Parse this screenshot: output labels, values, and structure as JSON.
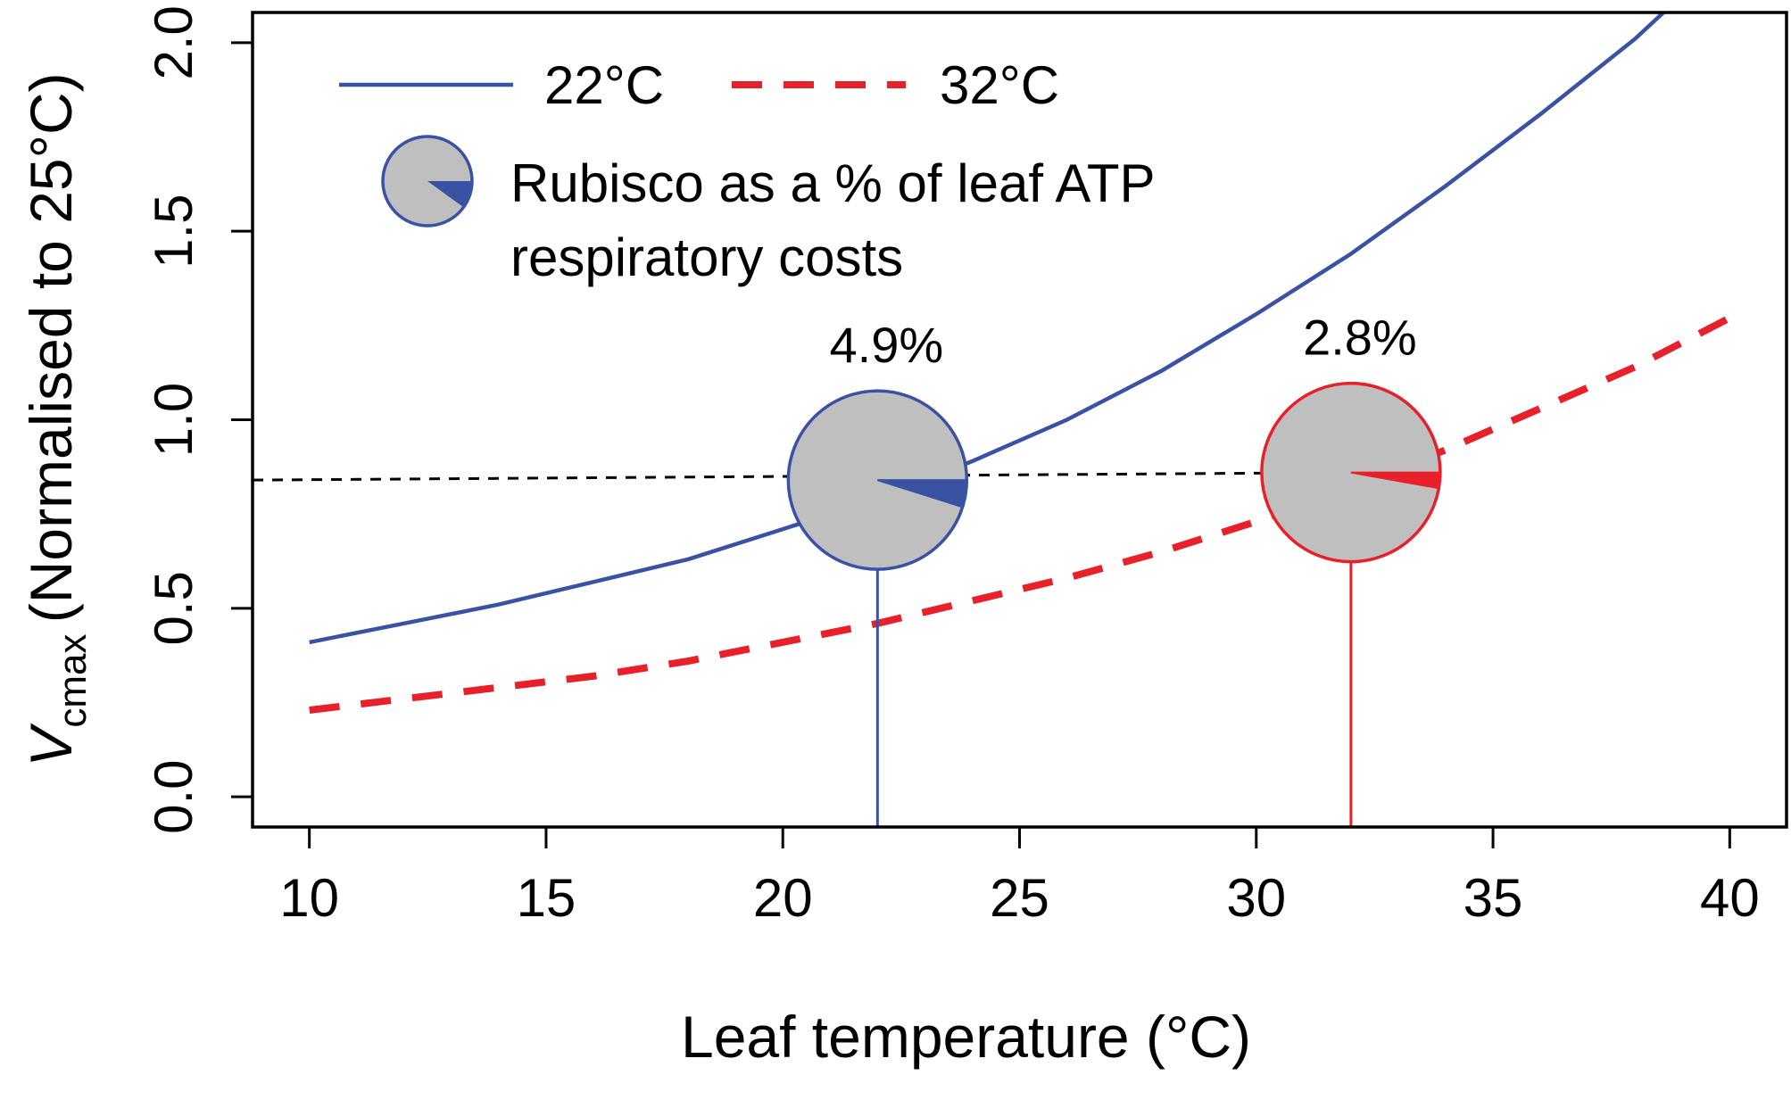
{
  "chart_data": {
    "type": "line",
    "xlabel": "Leaf temperature  (°C)",
    "ylabel": {
      "main": "V",
      "subscript": "cmax",
      "rest": "(Normalised to 25°C)"
    },
    "xlim": [
      8.8,
      41.2
    ],
    "ylim": [
      -0.08,
      2.08
    ],
    "x_ticks": [
      10,
      15,
      20,
      25,
      30,
      35,
      40
    ],
    "y_ticks": [
      0.0,
      0.5,
      1.0,
      1.5,
      2.0
    ],
    "x_tick_labels": [
      "10",
      "15",
      "20",
      "25",
      "30",
      "35",
      "40"
    ],
    "y_tick_labels": [
      "0.0",
      "0.5",
      "1.0",
      "1.5",
      "2.0"
    ],
    "grid": false,
    "legend_position": "top-left",
    "series": [
      {
        "name": "22°C",
        "color": "#3a52a4",
        "dash": "solid",
        "x": [
          10,
          12,
          14,
          16,
          18,
          20,
          22,
          24,
          26,
          28,
          30,
          32,
          34,
          36,
          38,
          38.6
        ],
        "y": [
          0.41,
          0.46,
          0.51,
          0.57,
          0.63,
          0.71,
          0.79,
          0.89,
          1.0,
          1.13,
          1.28,
          1.44,
          1.62,
          1.81,
          2.01,
          2.08
        ]
      },
      {
        "name": "32°C",
        "color": "#e8202a",
        "dash": "dashed",
        "x": [
          10,
          12,
          14,
          16,
          18,
          20,
          22,
          24,
          26,
          28,
          30,
          32,
          34,
          36,
          38,
          40
        ],
        "y": [
          0.23,
          0.26,
          0.29,
          0.32,
          0.36,
          0.41,
          0.46,
          0.52,
          0.58,
          0.65,
          0.73,
          0.82,
          0.92,
          1.03,
          1.14,
          1.27
        ]
      }
    ],
    "reference_line": {
      "y_start": 0.84,
      "y_end": 0.86,
      "x_end": 32,
      "style": "dashed",
      "color": "#000000"
    },
    "pie_legend_text": [
      "Rubisco as a % of leaf ATP",
      "respiratory costs"
    ],
    "pies": [
      {
        "x": 22,
        "y": 0.84,
        "percent": 4.9,
        "label": "4.9%",
        "color": "#3a52a4",
        "fill": "#bfbfbf"
      },
      {
        "x": 32,
        "y": 0.86,
        "percent": 2.8,
        "label": "2.8%",
        "color": "#e8202a",
        "fill": "#bfbfbf"
      }
    ]
  }
}
